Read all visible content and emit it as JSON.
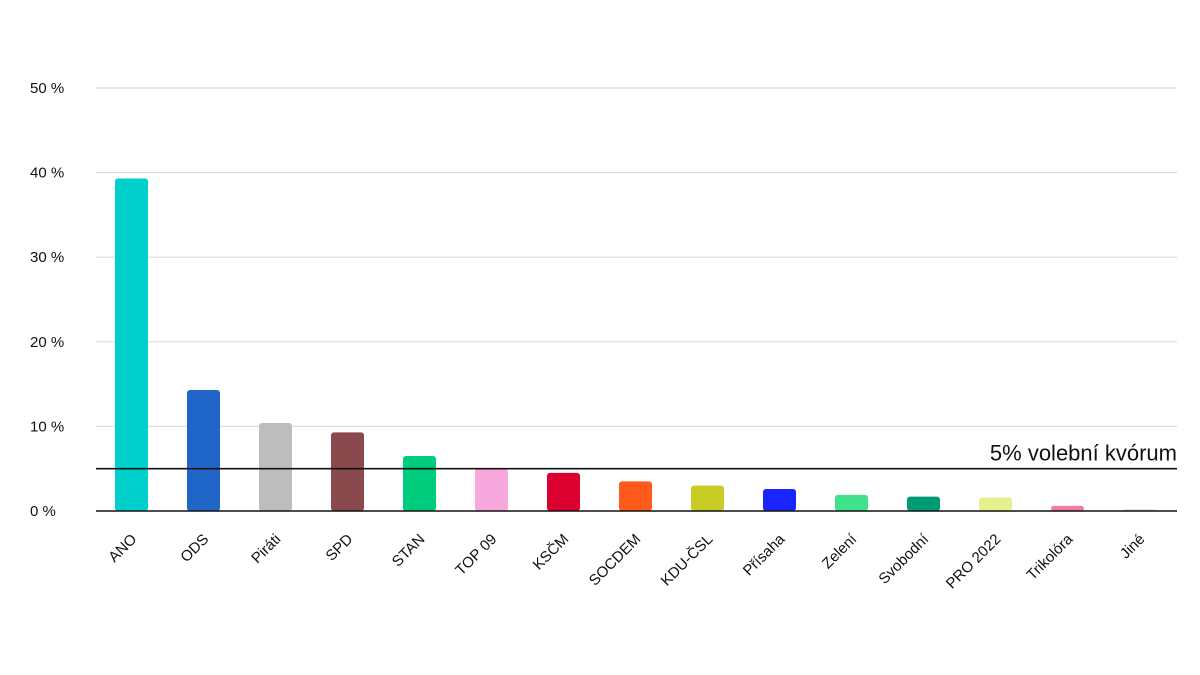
{
  "chart_data": {
    "type": "bar",
    "title": "",
    "xlabel": "",
    "ylabel": "",
    "ylim": [
      0,
      50
    ],
    "yticks": [
      0,
      10,
      20,
      30,
      40,
      50
    ],
    "ytick_labels": [
      "0 %",
      "10 %",
      "20 %",
      "30 %",
      "40 %",
      "50 %"
    ],
    "grid": true,
    "legend": "none",
    "categories": [
      "ANO",
      "ODS",
      "Piráti",
      "SPD",
      "STAN",
      "TOP 09",
      "KSČM",
      "SOCDEM",
      "KDU-ČSL",
      "Přísaha",
      "Zelení",
      "Svobodní",
      "PRO 2022",
      "Trikolóra",
      "Jiné"
    ],
    "values": [
      39.3,
      14.3,
      10.4,
      9.3,
      6.5,
      5.0,
      4.5,
      3.5,
      3.0,
      2.6,
      1.9,
      1.7,
      1.6,
      0.6,
      0.2
    ],
    "colors": [
      "#00d0cc",
      "#2066c8",
      "#bdbdbd",
      "#8a4a4d",
      "#00cc7e",
      "#f7a8dc",
      "#dc0031",
      "#ff5a1a",
      "#c9cc25",
      "#1a24ff",
      "#40e38c",
      "#009b74",
      "#e6f08c",
      "#f27b9e",
      "#d8d8d8"
    ],
    "threshold": {
      "value": 5,
      "label": "5% volební kvórum"
    }
  }
}
